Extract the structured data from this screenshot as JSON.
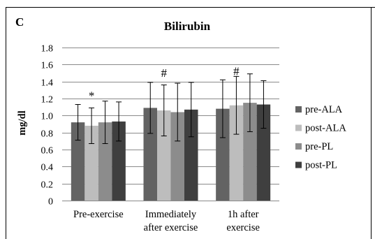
{
  "panel_label": "C",
  "chart_data": {
    "type": "bar",
    "title": "Bilirubin",
    "xlabel": "",
    "ylabel": "mg/dl",
    "ylim": [
      0,
      1.8
    ],
    "yticks": [
      "0",
      "0.2",
      "0.4",
      "0.6",
      "0.8",
      "1.0",
      "1.2",
      "1.4",
      "1.6",
      "1.8"
    ],
    "grid": true,
    "legend_position": "right",
    "categories": [
      {
        "lines": [
          "Pre-exercise"
        ]
      },
      {
        "lines": [
          "Immediately",
          "after exercise"
        ]
      },
      {
        "lines": [
          "1h after",
          "exercise"
        ]
      }
    ],
    "series": [
      {
        "name": "pre-ALA",
        "color": "#636363",
        "values": [
          0.92,
          1.09,
          1.08
        ],
        "errors": [
          0.21,
          0.3,
          0.34
        ]
      },
      {
        "name": "post-ALA",
        "color": "#bdbdbd",
        "values": [
          0.88,
          1.06,
          1.12
        ],
        "errors": [
          0.21,
          0.3,
          0.34
        ]
      },
      {
        "name": "pre-PL",
        "color": "#8c8c8c",
        "values": [
          0.92,
          1.04,
          1.15
        ],
        "errors": [
          0.25,
          0.34,
          0.34
        ]
      },
      {
        "name": "post-PL",
        "color": "#3f3f3f",
        "values": [
          0.93,
          1.07,
          1.13
        ],
        "errors": [
          0.23,
          0.32,
          0.28
        ]
      }
    ],
    "annotations": [
      {
        "text": "*",
        "category": 0,
        "value": 1.26
      },
      {
        "text": "#",
        "category": 1,
        "value": 1.53
      },
      {
        "text": "#",
        "category": 2,
        "value": 1.55
      }
    ]
  }
}
